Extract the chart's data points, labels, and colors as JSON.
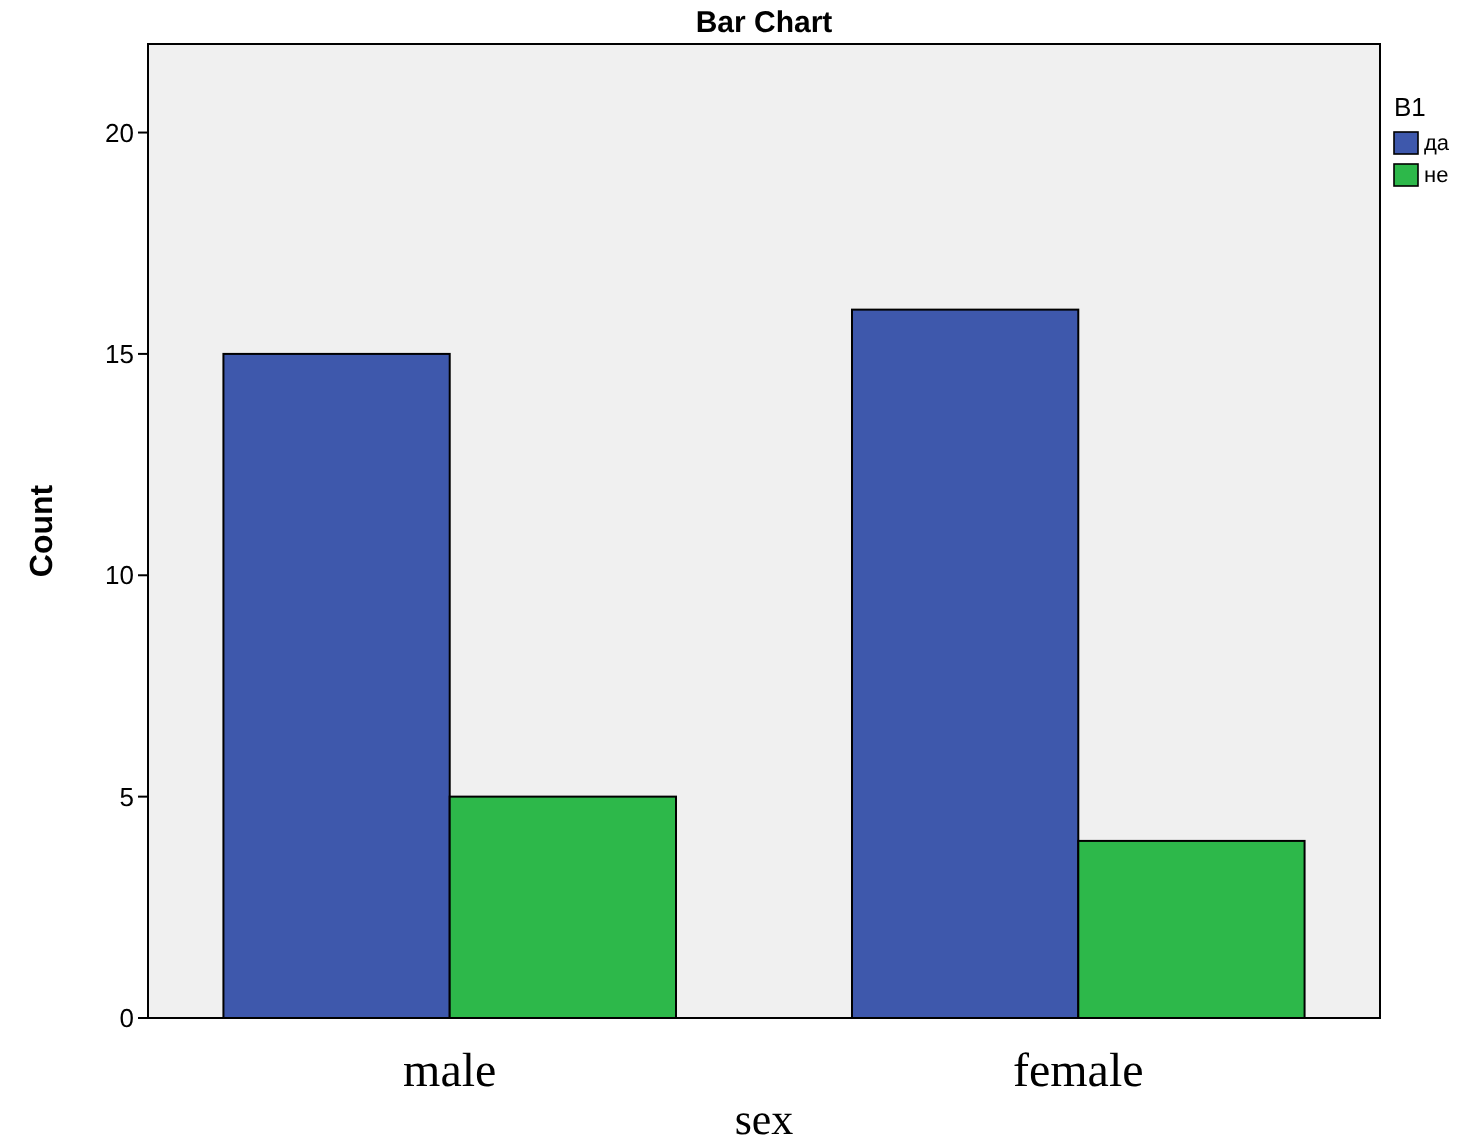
{
  "chart_data": {
    "type": "bar",
    "title": "Bar Chart",
    "xlabel": "sex",
    "ylabel": "Count",
    "legend_title": "B1",
    "categories": [
      "male",
      "female"
    ],
    "series": [
      {
        "name": "да",
        "color": "#3e58ac",
        "values": [
          15,
          16
        ]
      },
      {
        "name": "не",
        "color": "#2db84a",
        "values": [
          5,
          4
        ]
      }
    ],
    "ylim": [
      0,
      22
    ],
    "yticks": [
      0,
      5,
      10,
      15,
      20
    ],
    "grid": false,
    "legend": "top right"
  }
}
